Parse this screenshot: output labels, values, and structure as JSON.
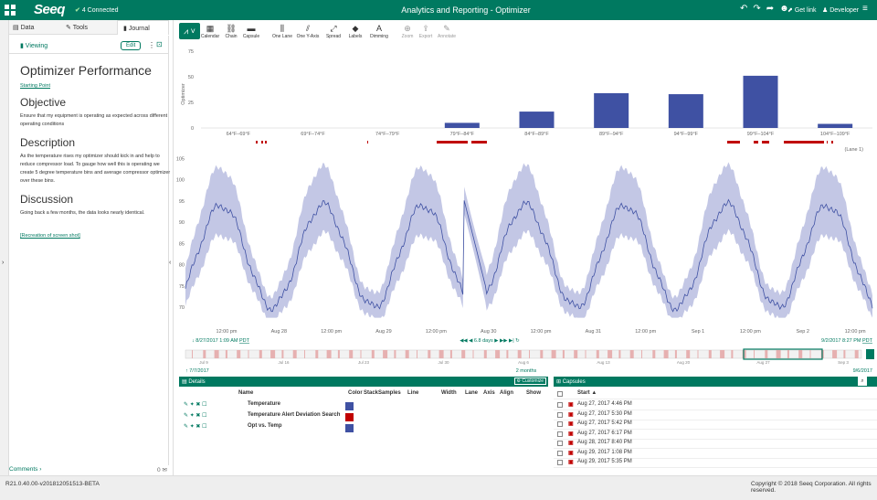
{
  "topbar": {
    "logo": "Seeq",
    "connected": "4 Connected",
    "title": "Analytics and Reporting - Optimizer",
    "get_link": "Get link",
    "user": "Developer"
  },
  "left_tabs": {
    "data": "Data",
    "tools": "Tools",
    "journal": "Journal"
  },
  "viewing": {
    "label": "Viewing",
    "edit": "Edit"
  },
  "journal": {
    "title": "Optimizer Performance",
    "link1": "Starting Point",
    "h_objective": "Objective",
    "p_objective": "Ensure that my equipment is operating as expected across different operating conditions",
    "h_description": "Description",
    "p_description": "As the temperature rises my optimizer should kick in and help to reduce compressor load. To gauge how well this is operating we create 5 degree temperature bins and average compressor optimizer over these bins.",
    "h_discussion": "Discussion",
    "p_discussion": "Going back a few months, the data looks nearly identical.",
    "link2": "[Recreation of screen shot]"
  },
  "comments": "Comments",
  "comments_count": "0",
  "version": "R21.0.40.00-v201812051513-BETA",
  "copyright": "Copyright © 2018 Seeq Corporation. All rights reserved.",
  "toolbar": [
    {
      "label": "Calendar",
      "icon": "calendar-icon"
    },
    {
      "label": "Chain",
      "icon": "chain-icon"
    },
    {
      "label": "Capsule",
      "icon": "capsule-icon"
    },
    {
      "label": "One Lane",
      "icon": "one-lane-icon"
    },
    {
      "label": "One Y-Axis",
      "icon": "one-yaxis-icon"
    },
    {
      "label": "Spread",
      "icon": "spread-icon"
    },
    {
      "label": "Labels",
      "icon": "labels-icon"
    },
    {
      "label": "Dimming",
      "icon": "dimming-icon"
    },
    {
      "label": "Zoom",
      "icon": "zoom-icon"
    },
    {
      "label": "Export",
      "icon": "export-icon"
    },
    {
      "label": "Annotate",
      "icon": "annotate-icon"
    }
  ],
  "chart_data": [
    {
      "type": "bar",
      "ylabel": "Optimizer",
      "yticks": [
        0,
        25,
        50,
        75
      ],
      "ylim": [
        0,
        75
      ],
      "categories": [
        "64°F–69°F",
        "69°F–74°F",
        "74°F–79°F",
        "79°F–84°F",
        "84°F–89°F",
        "89°F–94°F",
        "94°F–99°F",
        "99°F–104°F",
        "104°F–109°F"
      ],
      "values": [
        0,
        0,
        0,
        5,
        16,
        34,
        33,
        51,
        4
      ],
      "color": "#3f51a3"
    },
    {
      "type": "line",
      "lane_label": "(Lane 1)",
      "yticks": [
        70,
        75,
        80,
        85,
        90,
        95,
        100,
        105
      ],
      "ylim": [
        67,
        107
      ],
      "xticks": [
        "12:00 pm",
        "Aug 28",
        "12:00 pm",
        "Aug 29",
        "12:00 pm",
        "Aug 30",
        "12:00 pm",
        "Aug 31",
        "12:00 pm",
        "Sep 1",
        "12:00 pm",
        "Sep 2",
        "12:00 pm"
      ],
      "series": [
        {
          "name": "Temperature",
          "color": "#3f51a3"
        }
      ]
    }
  ],
  "range": {
    "start": "8/27/2017 1:09 AM",
    "start_tz": "PDT",
    "end": "9/2/2017 8:27 PM",
    "end_tz": "PDT",
    "duration": "6.8 days"
  },
  "nav_ticks": [
    "Jul 9",
    "Jul 16",
    "Jul 23",
    "Jul 30",
    "Aug 6",
    "Aug 13",
    "Aug 20",
    "Aug 27",
    "Sep 3"
  ],
  "nav_range": {
    "start": "7/7/2017",
    "mid": "2 months",
    "end": "9/6/2017"
  },
  "details": {
    "title": "Details",
    "customize": "Customize",
    "headers": [
      "Name",
      "Color",
      "Stack",
      "Samples",
      "Line",
      "Width",
      "Lane",
      "Axis",
      "Align",
      "Show"
    ],
    "rows": [
      {
        "name": "Temperature",
        "color": "#3f51a3"
      },
      {
        "name": "Temperature Alert Deviation Search",
        "color": "#c00000"
      },
      {
        "name": "Opt vs. Temp",
        "color": "#3f51a3"
      }
    ]
  },
  "capsules": {
    "title": "Capsules",
    "header": "Start",
    "rows": [
      "Aug 27, 2017 4:46 PM",
      "Aug 27, 2017 5:30 PM",
      "Aug 27, 2017 5:42 PM",
      "Aug 27, 2017 6:17 PM",
      "Aug 28, 2017 8:40 PM",
      "Aug 29, 2017 1:08 PM",
      "Aug 29, 2017 5:35 PM"
    ]
  }
}
